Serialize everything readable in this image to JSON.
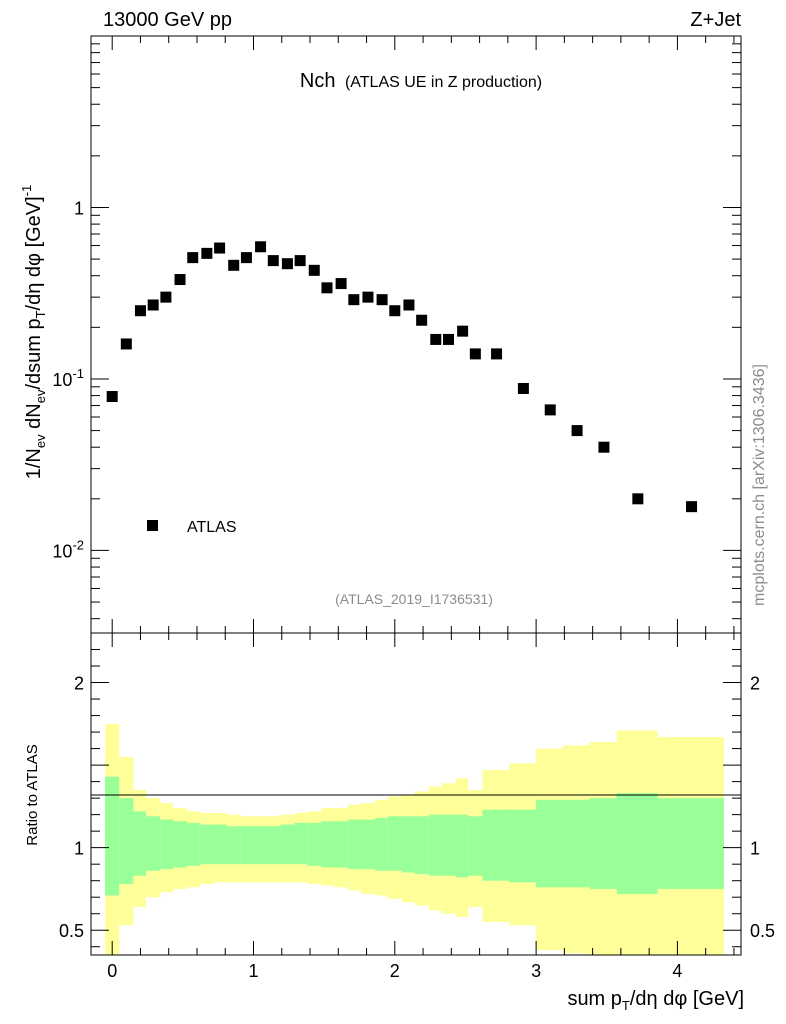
{
  "header": {
    "left": "13000 GeV pp",
    "right": "Z+Jet"
  },
  "side_label": "mcplots.cern.ch [arXiv:1306.3436]",
  "colors": {
    "green_band": "#99ff99",
    "yellow_band": "#ffff99",
    "marker": "#000000"
  },
  "chart_data": {
    "type": "scatter",
    "title": "Nch",
    "subtitle": "(ATLAS UE in Z production)",
    "analysis_id": "(ATLAS_2019_I1736531)",
    "legend": [
      {
        "name": "ATLAS",
        "marker": "square"
      }
    ],
    "xlabel": "sum p_T/dη dφ [GeV]",
    "ylabel": "1/N_ev dN_ev/dsum p_T/dη dφ [GeV]^-1",
    "ratio_ylabel": "Ratio to ATLAS",
    "xlim": [
      -0.15,
      4.45
    ],
    "ylim": [
      0.0033,
      10
    ],
    "ratio_ylim": [
      0.35,
      2.3
    ],
    "x_ticks": [
      "0",
      "1",
      "2",
      "3",
      "4"
    ],
    "y_ticks": [
      {
        "value": 1,
        "label": "1"
      },
      {
        "value": 0.1,
        "label": "10^-1"
      },
      {
        "value": 0.01,
        "label": "10^-2"
      }
    ],
    "ratio_ticks": [
      {
        "value": 2,
        "label": "2"
      },
      {
        "value": 1,
        "label": "1"
      },
      {
        "value": 0.5,
        "label": "0.5"
      }
    ],
    "series": [
      {
        "name": "ATLAS",
        "x": [
          0.0,
          0.1,
          0.2,
          0.29,
          0.38,
          0.48,
          0.57,
          0.67,
          0.76,
          0.86,
          0.95,
          1.05,
          1.14,
          1.24,
          1.33,
          1.43,
          1.52,
          1.62,
          1.71,
          1.81,
          1.91,
          2.0,
          2.1,
          2.19,
          2.29,
          2.38,
          2.48,
          2.57,
          2.72,
          2.91,
          3.1,
          3.29,
          3.48,
          3.72,
          4.1
        ],
        "y": [
          0.079,
          0.16,
          0.25,
          0.27,
          0.3,
          0.38,
          0.51,
          0.54,
          0.58,
          0.46,
          0.51,
          0.59,
          0.49,
          0.47,
          0.49,
          0.43,
          0.34,
          0.36,
          0.29,
          0.3,
          0.29,
          0.25,
          0.27,
          0.22,
          0.17,
          0.17,
          0.19,
          0.14,
          0.14,
          0.088,
          0.066,
          0.05,
          0.04,
          0.02,
          0.018
        ]
      }
    ],
    "ratio_bands": {
      "edges": [
        -0.05,
        0.05,
        0.15,
        0.24,
        0.34,
        0.43,
        0.53,
        0.62,
        0.72,
        0.81,
        0.91,
        1.0,
        1.1,
        1.19,
        1.29,
        1.38,
        1.48,
        1.57,
        1.67,
        1.76,
        1.86,
        1.95,
        2.05,
        2.14,
        2.24,
        2.33,
        2.43,
        2.52,
        2.62,
        2.81,
        3.0,
        3.19,
        3.38,
        3.57,
        3.86,
        4.33
      ],
      "green_upper": [
        1.43,
        1.3,
        1.22,
        1.19,
        1.17,
        1.16,
        1.15,
        1.14,
        1.14,
        1.13,
        1.13,
        1.13,
        1.13,
        1.14,
        1.15,
        1.15,
        1.16,
        1.16,
        1.17,
        1.17,
        1.18,
        1.19,
        1.19,
        1.19,
        1.2,
        1.2,
        1.2,
        1.19,
        1.23,
        1.23,
        1.29,
        1.29,
        1.3,
        1.33,
        1.3
      ],
      "green_lower": [
        0.71,
        0.78,
        0.83,
        0.86,
        0.87,
        0.88,
        0.89,
        0.9,
        0.9,
        0.9,
        0.9,
        0.9,
        0.9,
        0.9,
        0.9,
        0.89,
        0.88,
        0.88,
        0.87,
        0.87,
        0.86,
        0.86,
        0.85,
        0.84,
        0.83,
        0.83,
        0.82,
        0.83,
        0.8,
        0.79,
        0.76,
        0.76,
        0.75,
        0.72,
        0.75
      ],
      "yellow_upper": [
        1.75,
        1.55,
        1.35,
        1.3,
        1.27,
        1.24,
        1.22,
        1.21,
        1.21,
        1.2,
        1.19,
        1.19,
        1.19,
        1.2,
        1.21,
        1.22,
        1.24,
        1.24,
        1.26,
        1.27,
        1.29,
        1.31,
        1.32,
        1.34,
        1.37,
        1.39,
        1.42,
        1.35,
        1.47,
        1.51,
        1.6,
        1.62,
        1.64,
        1.71,
        1.67
      ],
      "yellow_lower": [
        0.35,
        0.53,
        0.64,
        0.7,
        0.73,
        0.75,
        0.76,
        0.78,
        0.79,
        0.79,
        0.79,
        0.79,
        0.79,
        0.79,
        0.79,
        0.78,
        0.77,
        0.76,
        0.74,
        0.72,
        0.71,
        0.69,
        0.67,
        0.65,
        0.62,
        0.6,
        0.58,
        0.64,
        0.55,
        0.53,
        0.38,
        0.36,
        0.35,
        0.35,
        0.35
      ]
    }
  }
}
